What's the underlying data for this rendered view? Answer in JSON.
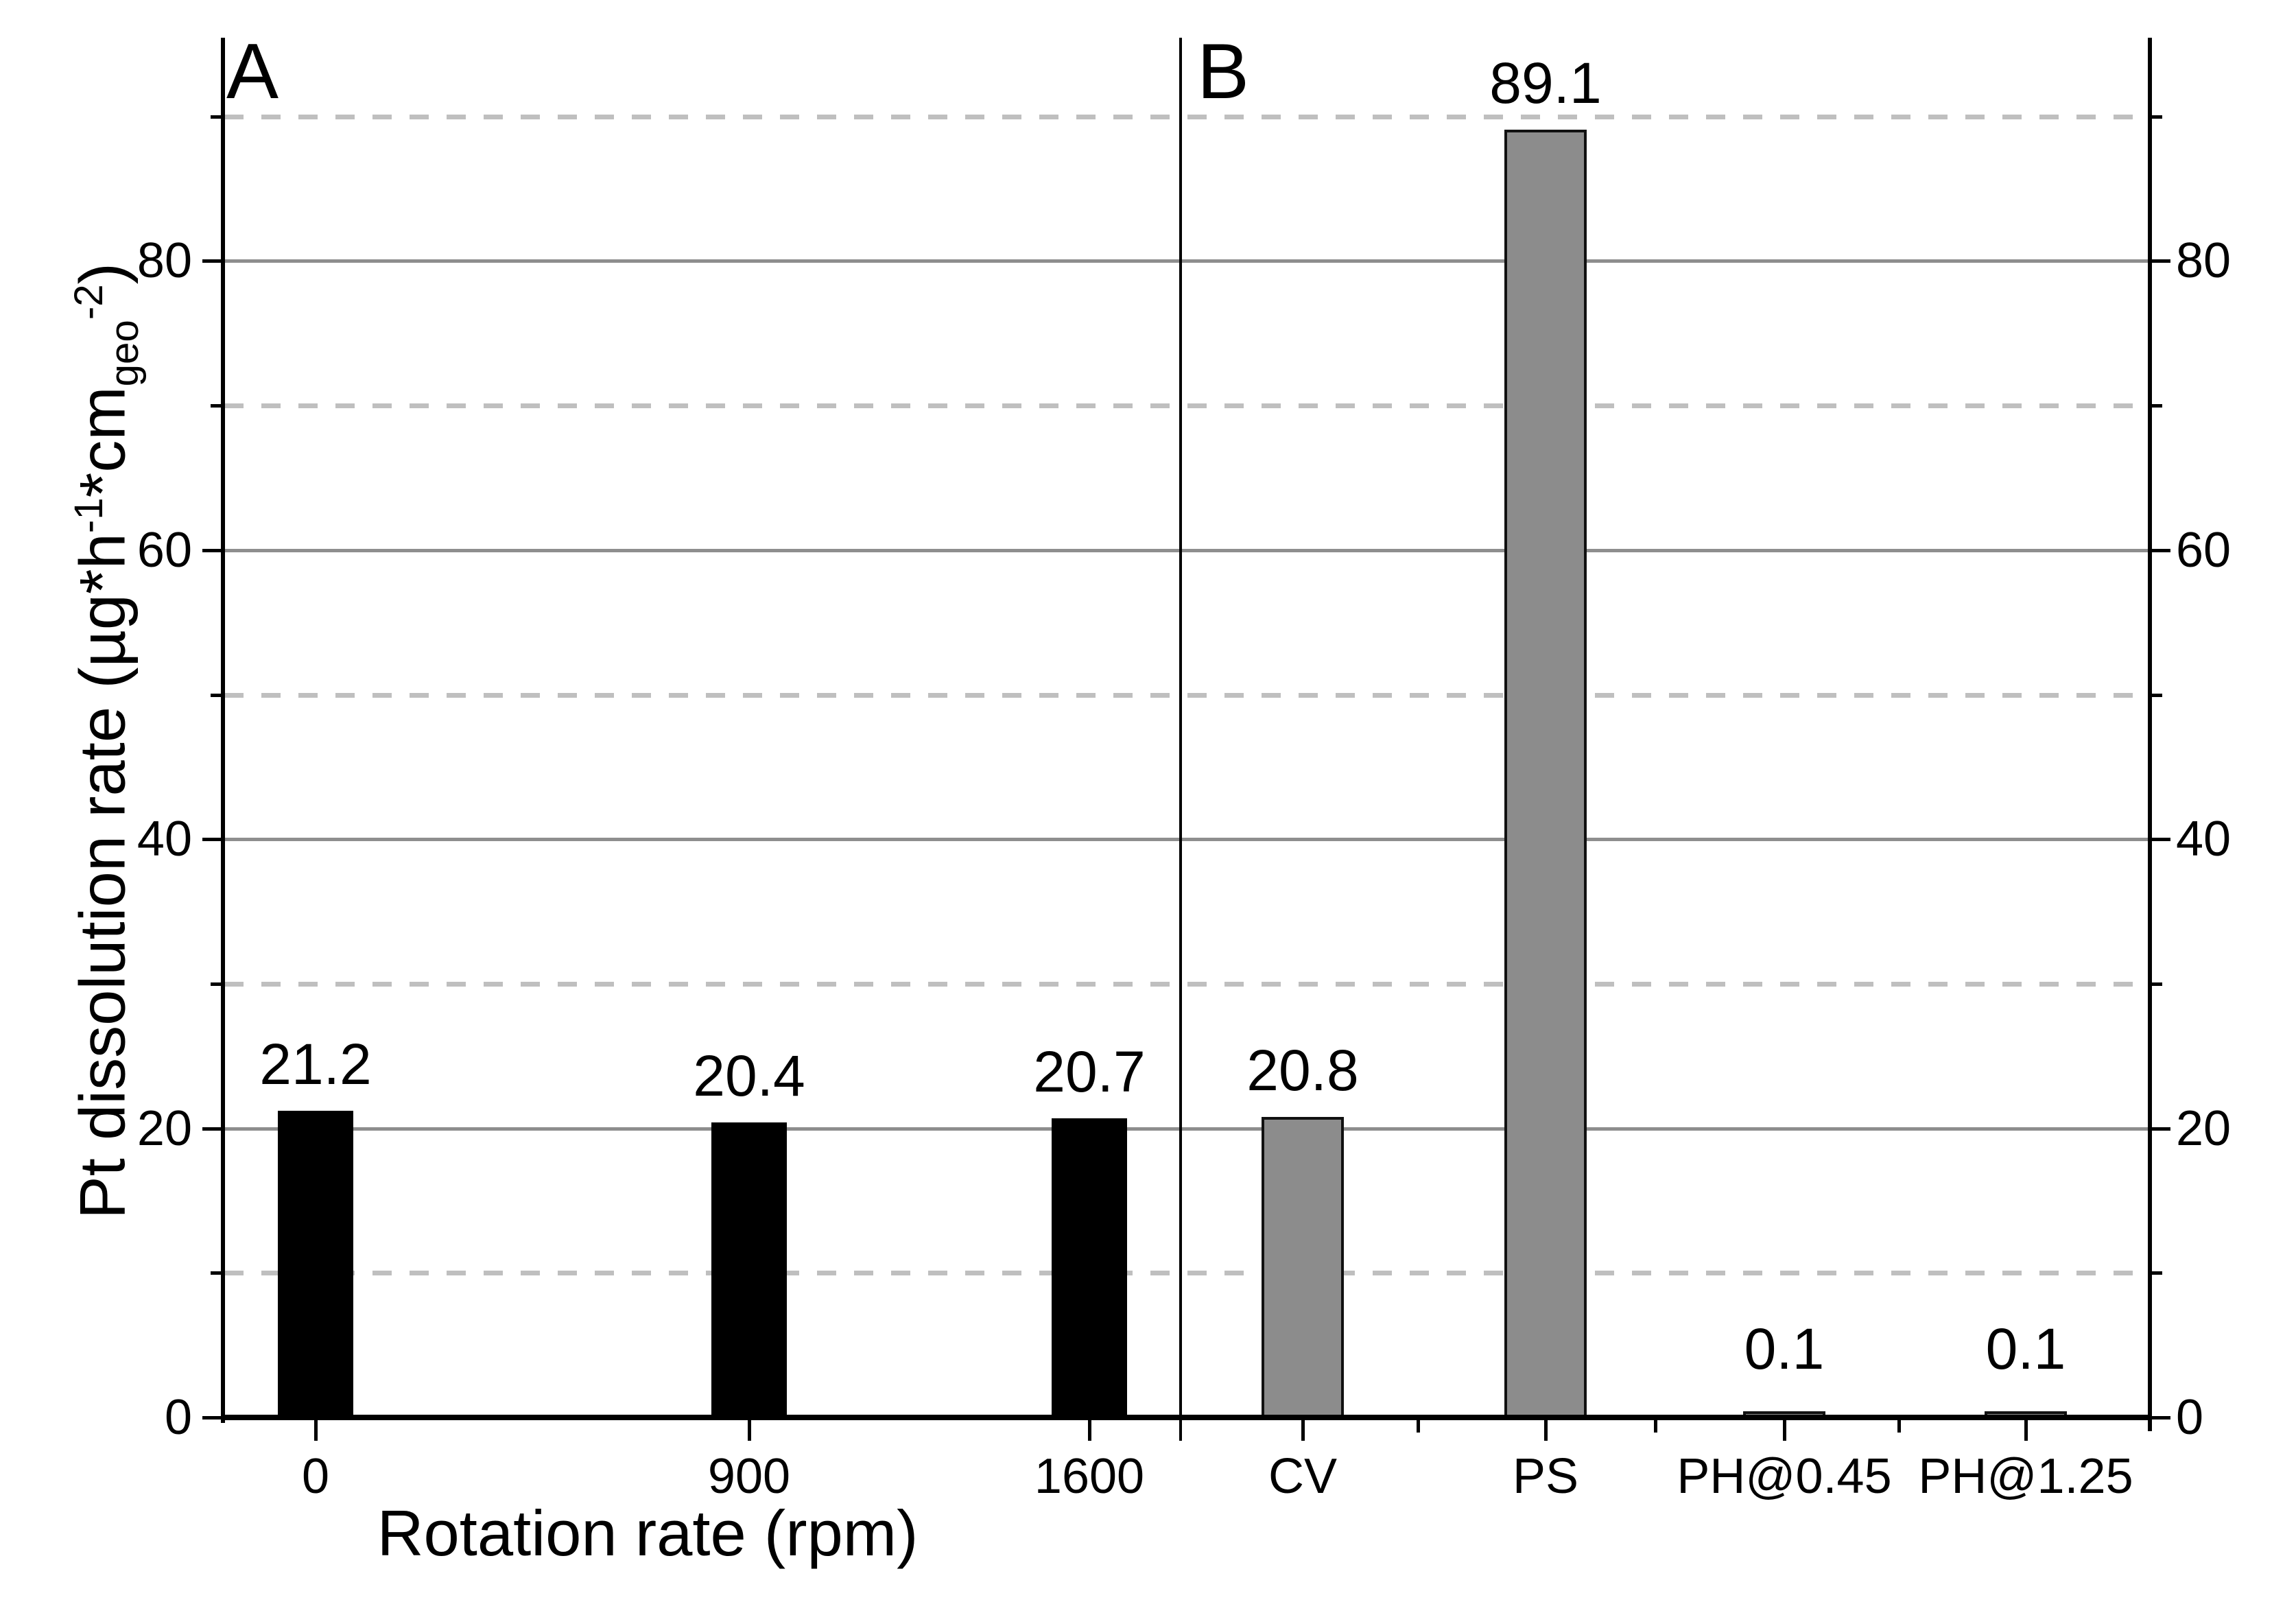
{
  "chart_data": {
    "type": "bar",
    "title": "",
    "ylabel": "Pt dissolution rate (µg*h⁻¹*cm_geo⁻²)",
    "ylabel_parts": {
      "prefix": "Pt dissolution rate (µg*h",
      "sup1": "-1",
      "mid": "*cm",
      "sub": "geo",
      "sup2": "-2",
      "suffix": ")"
    },
    "ylim": [
      0,
      95.4
    ],
    "yticks_major": [
      0,
      20,
      40,
      60,
      80
    ],
    "yticks_minor": [
      10,
      30,
      50,
      70,
      90
    ],
    "ytick_labels": [
      "0",
      "20",
      "40",
      "60",
      "80"
    ],
    "grid": {
      "major_style": "solid",
      "minor_style": "dashed",
      "major_color": "#8e8e8e",
      "minor_color": "#bfbfbf"
    },
    "legend": null,
    "axis_color": "#000000",
    "background": "#ffffff",
    "panels": [
      {
        "label": "A",
        "xlabel": "Rotation rate (rpm)",
        "bar_fill": "#000000",
        "bar_border": "#000000",
        "categories": [
          "0",
          "900",
          "1600"
        ],
        "values": [
          21.2,
          20.4,
          20.7
        ],
        "value_labels": [
          "21.2",
          "20.4",
          "20.7"
        ]
      },
      {
        "label": "B",
        "xlabel": "",
        "bar_fill": "#8c8c8c",
        "bar_border": "#111111",
        "categories": [
          "CV",
          "PS",
          "PH@0.45",
          "PH@1.25"
        ],
        "values": [
          20.8,
          89.1,
          0.1,
          0.1
        ],
        "value_labels": [
          "20.8",
          "89.1",
          "0.1",
          "0.1"
        ]
      }
    ]
  }
}
